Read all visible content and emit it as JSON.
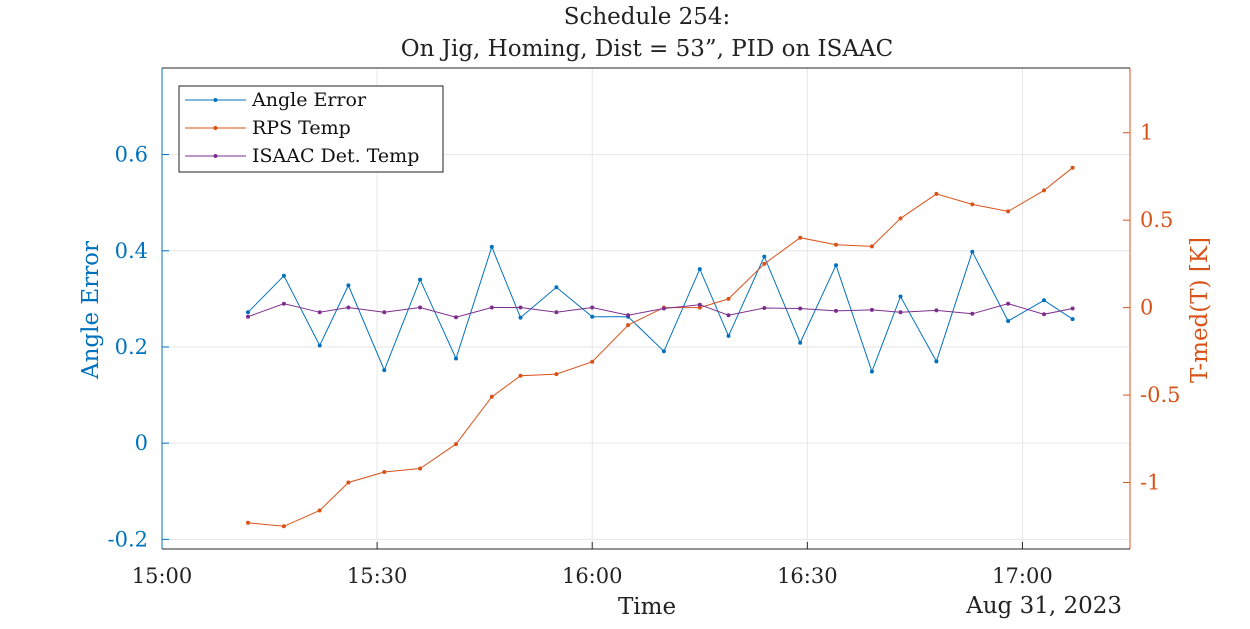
{
  "chart_data": {
    "type": "line",
    "title": [
      "Schedule 254:",
      "On Jig, Homing, Dist = 53”, PID on ISAAC"
    ],
    "xlabel": "Time",
    "date_label": "Aug 31, 2023",
    "ylabel_left": "Angle Error",
    "ylabel_right": "T-med(T) [K]",
    "x_ticks": [
      "15:00",
      "15:30",
      "16:00",
      "16:30",
      "17:00"
    ],
    "xlim": [
      "15:00",
      "17:15"
    ],
    "ylim_left": [
      -0.22,
      0.78
    ],
    "yticks_left": [
      "-0.2",
      "0",
      "0.2",
      "0.4",
      "0.6"
    ],
    "ylim_right": [
      -1.38,
      1.37
    ],
    "yticks_right": [
      "-1",
      "-0.5",
      "0",
      "0.5",
      "1"
    ],
    "grid": true,
    "legend_position": "top-left",
    "x": [
      "15:12",
      "15:17",
      "15:22",
      "15:26",
      "15:31",
      "15:36",
      "15:41",
      "15:46",
      "15:50",
      "15:55",
      "16:00",
      "16:05",
      "16:10",
      "16:15",
      "16:19",
      "16:24",
      "16:29",
      "16:34",
      "16:39",
      "16:43",
      "16:48",
      "16:53",
      "16:58",
      "17:03",
      "17:07"
    ],
    "series": [
      {
        "name": "Angle Error",
        "axis": "left",
        "color": "#0072BD",
        "values": [
          0.272,
          0.348,
          0.203,
          0.328,
          0.152,
          0.34,
          0.176,
          0.408,
          0.261,
          0.324,
          0.263,
          0.263,
          0.191,
          0.362,
          0.223,
          0.388,
          0.209,
          0.37,
          0.149,
          0.305,
          0.17,
          0.398,
          0.254,
          0.297,
          0.258
        ]
      },
      {
        "name": "RPS Temp",
        "axis": "right",
        "color": "#D95319",
        "values": [
          -1.23,
          -1.25,
          -1.16,
          -1.0,
          -0.94,
          -0.92,
          -0.78,
          -0.51,
          -0.39,
          -0.38,
          -0.31,
          -0.1,
          0.0,
          0.0,
          0.05,
          0.25,
          0.4,
          0.36,
          0.35,
          0.51,
          0.65,
          0.59,
          0.55,
          0.67,
          0.8
        ]
      },
      {
        "name": "ISAAC Det. Temp",
        "axis": "left",
        "color": "#7E2F8E",
        "values": [
          0.263,
          0.29,
          0.272,
          0.282,
          0.272,
          0.282,
          0.262,
          0.282,
          0.282,
          0.272,
          0.282,
          0.266,
          0.28,
          0.288,
          0.266,
          0.281,
          0.28,
          0.275,
          0.277,
          0.272,
          0.276,
          0.269,
          0.29,
          0.268,
          0.28
        ]
      }
    ]
  }
}
